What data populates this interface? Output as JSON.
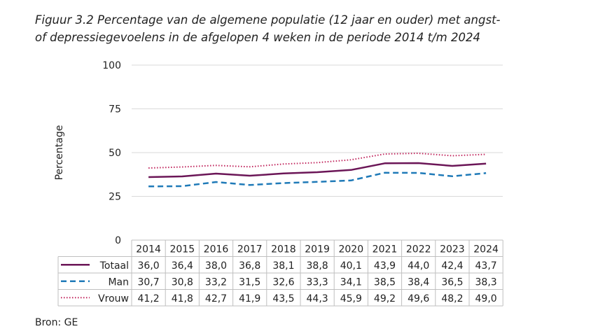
{
  "title_lines": [
    "Figuur 3.2 Percentage van de algemene populatie (12 jaar en ouder) met angst-",
    "of depressiegevoelens in de afgelopen 4 weken in de periode 2014 t/m 2024"
  ],
  "source": "Bron: GE",
  "chart_data": {
    "type": "line",
    "title": "Figuur 3.2 Percentage van de algemene populatie (12 jaar en ouder) met angst- of depressiegevoelens in de afgelopen 4 weken in de periode 2014 t/m 2024",
    "ylabel": "Percentage",
    "xlabel": "",
    "ylim": [
      0,
      100
    ],
    "yticks": [
      "0",
      "25",
      "50",
      "75",
      "100"
    ],
    "ytick_values": [
      0,
      25,
      50,
      75,
      100
    ],
    "grid": true,
    "categories": [
      "2014",
      "2015",
      "2016",
      "2017",
      "2018",
      "2019",
      "2020",
      "2021",
      "2022",
      "2023",
      "2024"
    ],
    "series": [
      {
        "name": "Totaal",
        "style": "solid",
        "color": "#6b1657",
        "values": [
          36.0,
          36.4,
          38.0,
          36.8,
          38.1,
          38.8,
          40.1,
          43.9,
          44.0,
          42.4,
          43.7
        ],
        "labels": [
          "36,0",
          "36,4",
          "38,0",
          "36,8",
          "38,1",
          "38,8",
          "40,1",
          "43,9",
          "44,0",
          "42,4",
          "43,7"
        ]
      },
      {
        "name": "Man",
        "style": "dashed",
        "color": "#1f7ab8",
        "values": [
          30.7,
          30.8,
          33.2,
          31.5,
          32.6,
          33.3,
          34.1,
          38.5,
          38.4,
          36.5,
          38.3
        ],
        "labels": [
          "30,7",
          "30,8",
          "33,2",
          "31,5",
          "32,6",
          "33,3",
          "34,1",
          "38,5",
          "38,4",
          "36,5",
          "38,3"
        ]
      },
      {
        "name": "Vrouw",
        "style": "dotted",
        "color": "#c0245c",
        "values": [
          41.2,
          41.8,
          42.7,
          41.9,
          43.5,
          44.3,
          45.9,
          49.2,
          49.6,
          48.2,
          49.0
        ],
        "labels": [
          "41,2",
          "41,8",
          "42,7",
          "41,9",
          "43,5",
          "44,3",
          "45,9",
          "49,2",
          "49,6",
          "48,2",
          "49,0"
        ]
      }
    ]
  }
}
